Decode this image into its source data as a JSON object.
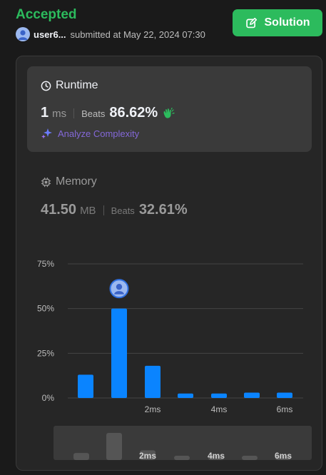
{
  "header": {
    "status": "Accepted",
    "username": "user6...",
    "submitted_text": "submitted at May 22, 2024 07:30",
    "solution_label": "Solution"
  },
  "runtime": {
    "title": "Runtime",
    "value": "1",
    "unit": "ms",
    "beats_label": "Beats",
    "beats": "86.62%",
    "analyze_label": "Analyze Complexity"
  },
  "memory": {
    "title": "Memory",
    "value": "41.50",
    "unit": "MB",
    "beats_label": "Beats",
    "beats": "32.61%"
  },
  "colors": {
    "accent_green": "#2cbb5d",
    "bar_blue": "#0a84ff",
    "analyze_purple": "#8468d8"
  },
  "chart_data": {
    "type": "bar",
    "y_ticks": [
      "75%",
      "50%",
      "25%",
      "0%"
    ],
    "x_ticks": [
      "2ms",
      "4ms",
      "6ms"
    ],
    "ylim": [
      0,
      75
    ],
    "values": [
      13,
      50,
      18,
      2.5,
      2.5,
      3,
      3
    ],
    "current_index": 1,
    "minimap_values": [
      13,
      50,
      18,
      2.5,
      2.5,
      3,
      3
    ]
  }
}
